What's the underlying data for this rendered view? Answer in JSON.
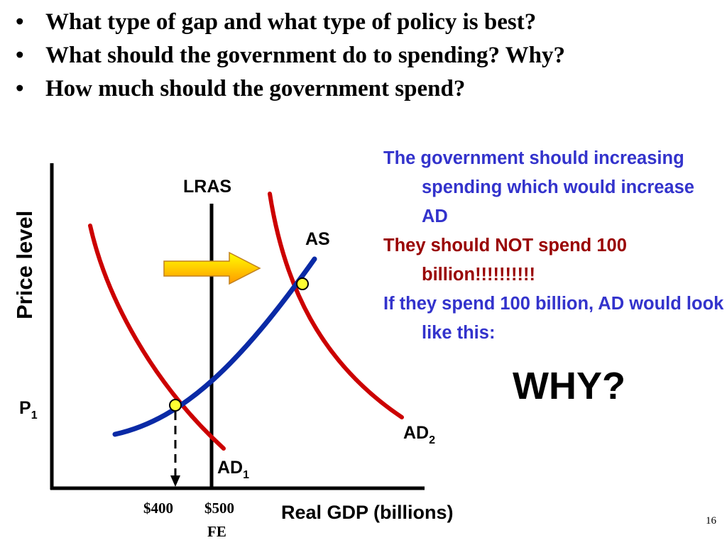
{
  "questions": [
    "What type of gap and what type of policy is best?",
    "What should the government do to spending? Why?",
    "How much should the government spend?"
  ],
  "bullet_char": "•",
  "diagram": {
    "y_axis_label": "Price level",
    "x_axis_label": "Real GDP (billions)",
    "lras_label": "LRAS",
    "as_label": "AS",
    "ad1_label": "AD",
    "ad1_sub": "1",
    "ad2_label": "AD",
    "ad2_sub": "2",
    "p1_label": "P",
    "p1_sub": "1",
    "x_ticks": [
      "$400",
      "$500"
    ],
    "fe_label": "FE",
    "colors": {
      "ad_curve": "#cc0000",
      "as_curve": "#0a2aa6",
      "lras": "#000000",
      "equilibrium_point": "#ffff33",
      "arrow_top": "#ffff00",
      "arrow_bottom": "#ff9900"
    }
  },
  "explanation": {
    "line1": "The government should increasing spending which would increase AD",
    "line2": "They should NOT spend 100 billion!!!!!!!!!!",
    "line3": "If they spend 100 billion, AD would look like this:"
  },
  "why": "WHY?",
  "page_number": "16"
}
